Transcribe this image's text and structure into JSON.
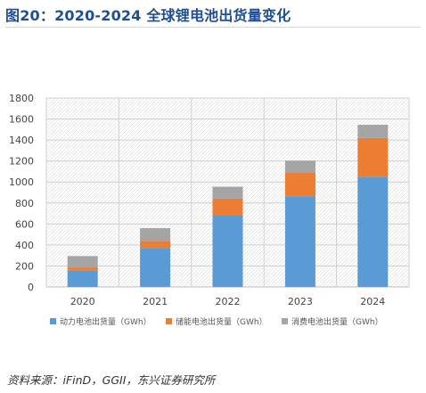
{
  "header": {
    "title": "图20：2020-2024 全球锂电池出货量变化"
  },
  "footer": {
    "source": "资料来源：iFinD，GGII，东兴证券研究所"
  },
  "chart_data": {
    "type": "bar",
    "stacked": true,
    "title": "",
    "xlabel": "",
    "ylabel": "",
    "categories": [
      "2020",
      "2021",
      "2022",
      "2023",
      "2024"
    ],
    "series": [
      {
        "name": "动力电池出货量（GWh）",
        "color": "#5b9bd5",
        "values": [
          159,
          372,
          684,
          865,
          1051
        ]
      },
      {
        "name": "储能电池出货量（GWh）",
        "color": "#ed7d31",
        "values": [
          27,
          66,
          159,
          225,
          369
        ]
      },
      {
        "name": "消费电池出货量（GWh）",
        "color": "#a5a5a5",
        "values": [
          108,
          122,
          112,
          113,
          125
        ]
      }
    ],
    "ylim": [
      0,
      1800
    ],
    "yticks": [
      0,
      200,
      400,
      600,
      800,
      1000,
      1200,
      1400,
      1600,
      1800
    ],
    "grid": true,
    "legend": "bottom"
  }
}
